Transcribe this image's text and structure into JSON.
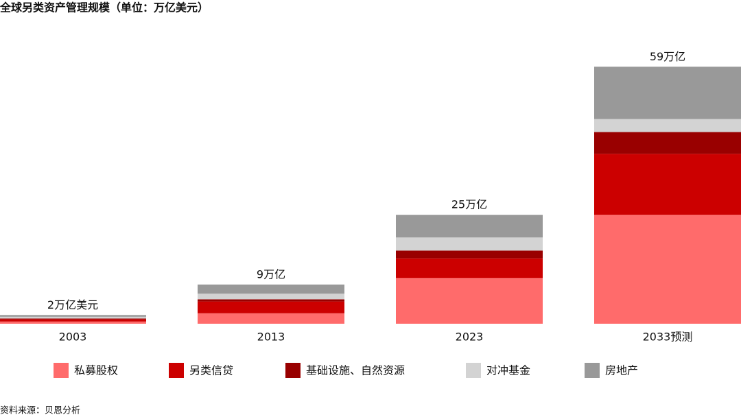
{
  "chart_data": {
    "type": "stacked_bar",
    "title": "全球另类资产管理规模（单位：万亿美元）",
    "source": "资料来源：贝恩分析",
    "categories": [
      "2003",
      "2013",
      "2023",
      "2033预测"
    ],
    "series": [
      {
        "name": "私募股权",
        "color": "#ff6b6b",
        "values": [
          0.5,
          2.4,
          10.5,
          25
        ]
      },
      {
        "name": "另类信贷",
        "color": "#cc0000",
        "values": [
          0.5,
          2.7,
          4.5,
          14
        ]
      },
      {
        "name": "基础设施、自然资源",
        "color": "#990000",
        "values": [
          0.2,
          0.5,
          1.8,
          5
        ]
      },
      {
        "name": "对冲基金",
        "color": "#d3d3d3",
        "values": [
          0.4,
          1.3,
          3,
          3
        ]
      },
      {
        "name": "房地产",
        "color": "#999999",
        "values": [
          0.4,
          2.1,
          5.2,
          12
        ]
      }
    ],
    "totals": {
      "values": [
        2,
        9,
        25,
        59
      ],
      "value_labels": [
        "2万亿美元",
        "9万亿",
        "25万亿",
        "59万亿"
      ]
    },
    "ylim": [
      0,
      74
    ]
  }
}
